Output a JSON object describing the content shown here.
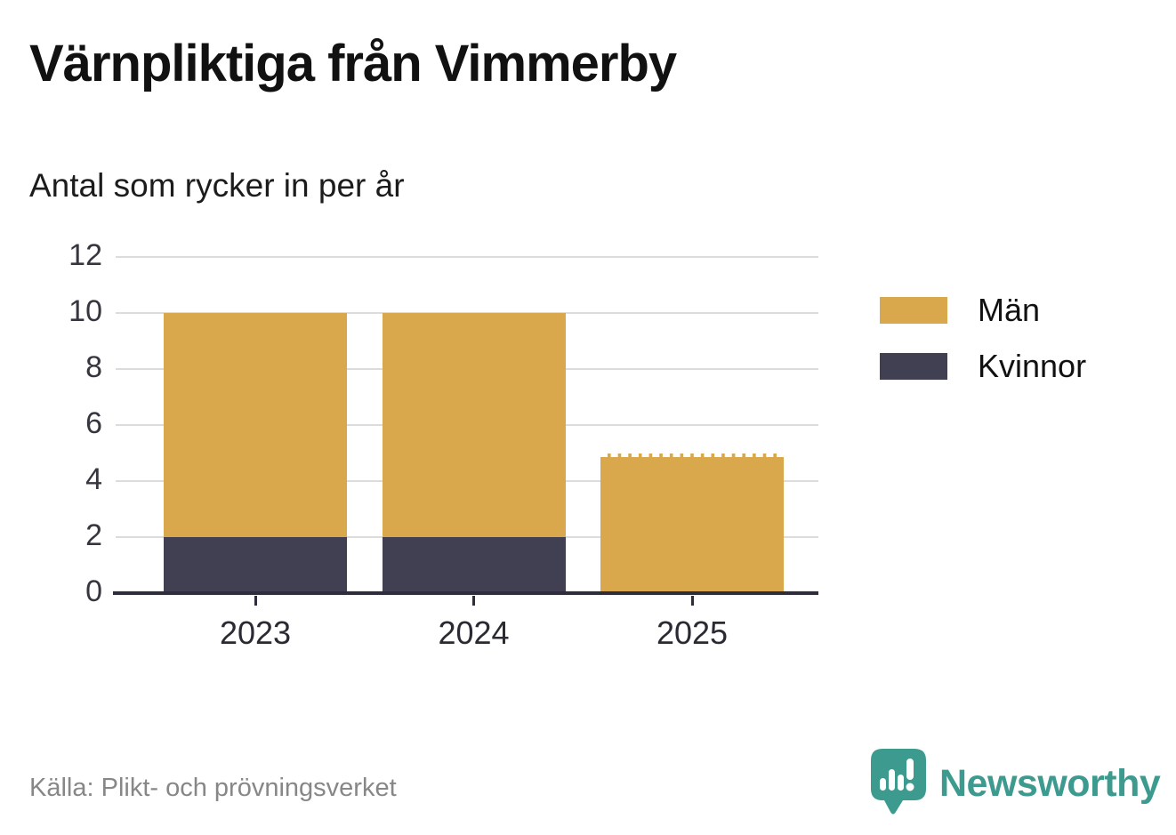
{
  "header": {
    "title": "Värnpliktiga från Vimmerby",
    "subtitle": "Antal som rycker in per år"
  },
  "footer": {
    "source": "Källa: Plikt- och prövningsverket",
    "brand": "Newsworthy",
    "brand_color": "#3d9a8f"
  },
  "chart_data": {
    "type": "bar",
    "stacked": true,
    "title": "Värnpliktiga från Vimmerby",
    "subtitle": "Antal som rycker in per år",
    "categories": [
      "2023",
      "2024",
      "2025"
    ],
    "series": [
      {
        "name": "Män",
        "color": "#d9a84c",
        "values": [
          8,
          8,
          5
        ]
      },
      {
        "name": "Kvinnor",
        "color": "#413f52",
        "values": [
          2,
          2,
          0
        ]
      }
    ],
    "totals": [
      10,
      10,
      5
    ],
    "yticks": [
      0,
      2,
      4,
      6,
      8,
      10,
      12
    ],
    "ylim": [
      0,
      12
    ],
    "xlabel": "",
    "ylabel": "Antal som rycker in per år",
    "grid": true,
    "gridline_color": "#dcdcdc",
    "axis_color": "#2e2d3c",
    "legend_position": "right",
    "preliminary": [
      false,
      false,
      true
    ]
  }
}
